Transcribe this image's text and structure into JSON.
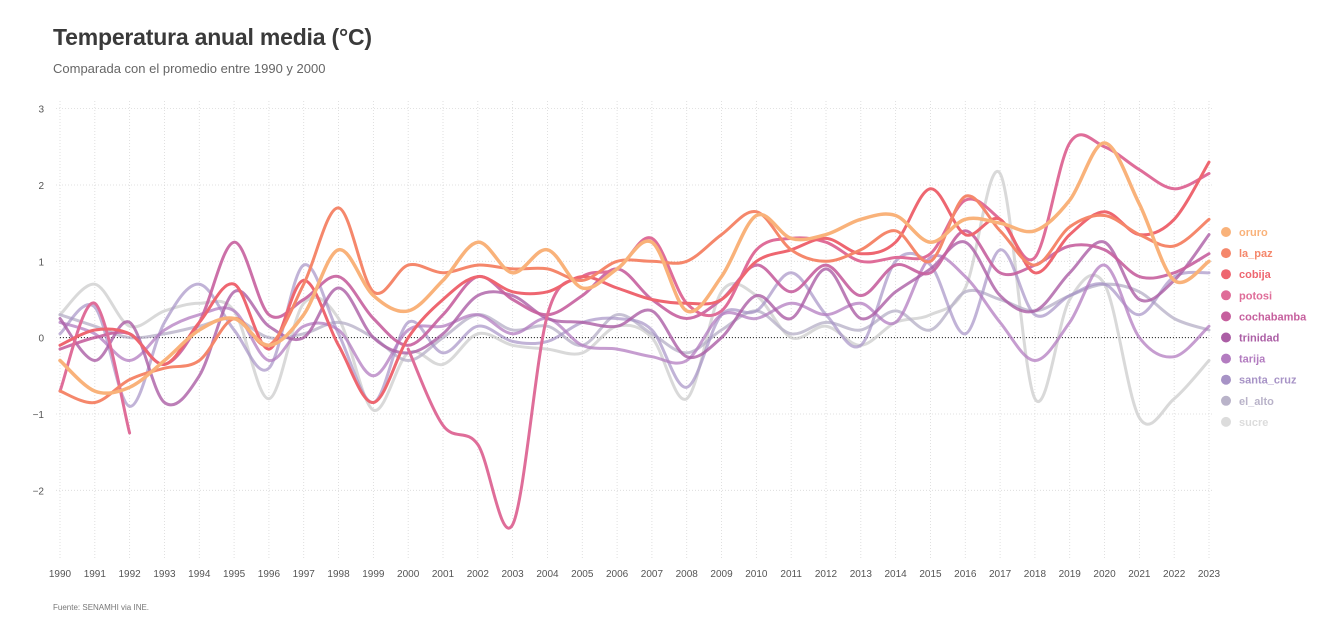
{
  "title": "Temperatura anual media (°C)",
  "subtitle": "Comparada con el promedio entre 1990 y 2000",
  "source": "Fuente: SENAMHI via INE.",
  "chart_data": {
    "type": "line",
    "title": "Temperatura anual media (°C)",
    "subtitle": "Comparada con el promedio entre 1990 y 2000",
    "ylim": [
      -2.9,
      3.1
    ],
    "xlim": [
      1990,
      2023
    ],
    "y_ticks": [
      -2,
      -1,
      0,
      1,
      2,
      3
    ],
    "y_tick_labels": [
      "−2",
      "−1",
      "0",
      "1",
      "2",
      "3"
    ],
    "grid": true,
    "reference_line": 0,
    "legend_position": "right",
    "x": [
      1990,
      1991,
      1992,
      1993,
      1994,
      1995,
      1996,
      1997,
      1998,
      1999,
      2000,
      2001,
      2002,
      2003,
      2004,
      2005,
      2006,
      2007,
      2008,
      2009,
      2010,
      2011,
      2012,
      2013,
      2014,
      2015,
      2016,
      2017,
      2018,
      2019,
      2020,
      2021,
      2022,
      2023
    ],
    "series": [
      {
        "name": "oruro",
        "color": "#f9b27a",
        "width": 3.5,
        "opacity": 1,
        "values": [
          -0.3,
          -0.7,
          -0.65,
          -0.3,
          0.1,
          0.25,
          -0.1,
          0.3,
          1.15,
          0.55,
          0.35,
          0.75,
          1.25,
          0.85,
          1.15,
          0.65,
          0.9,
          1.25,
          0.35,
          0.8,
          1.6,
          1.3,
          1.35,
          1.55,
          1.6,
          1.25,
          1.55,
          1.5,
          1.4,
          1.8,
          2.55,
          1.75,
          0.75,
          1.0
        ]
      },
      {
        "name": "la_paz",
        "color": "#f5876b",
        "width": 3,
        "opacity": 1,
        "values": [
          -0.7,
          -0.85,
          -0.55,
          -0.4,
          -0.3,
          0.25,
          -0.1,
          0.7,
          1.7,
          0.6,
          0.95,
          0.85,
          0.95,
          0.9,
          0.9,
          0.75,
          1.0,
          1.0,
          1.0,
          1.35,
          1.65,
          1.15,
          1.0,
          1.15,
          1.4,
          1.0,
          1.85,
          1.4,
          0.95,
          1.45,
          1.6,
          1.35,
          1.2,
          1.55
        ]
      },
      {
        "name": "cobija",
        "color": "#ee6670",
        "width": 3,
        "opacity": 1,
        "values": [
          -0.1,
          0.1,
          0.05,
          -0.35,
          0.2,
          0.7,
          -0.15,
          0.75,
          -0.1,
          -0.85,
          0.0,
          0.5,
          0.8,
          0.6,
          0.6,
          0.8,
          0.65,
          0.5,
          0.45,
          0.5,
          1.0,
          1.15,
          1.3,
          1.1,
          1.25,
          1.95,
          1.35,
          1.55,
          0.85,
          1.35,
          1.65,
          1.35,
          1.55,
          2.3
        ]
      },
      {
        "name": "potosi",
        "color": "#df6d99",
        "width": 3,
        "opacity": 1,
        "values": [
          -0.7,
          0.45,
          -1.25,
          null,
          null,
          null,
          null,
          null,
          null,
          null,
          -0.15,
          -1.15,
          -1.4,
          -2.45,
          0.3,
          0.8,
          0.9,
          1.3,
          0.45,
          0.35,
          1.15,
          1.3,
          1.25,
          1.0,
          1.05,
          1.1,
          1.8,
          1.55,
          1.05,
          2.55,
          2.5,
          2.2,
          1.95,
          2.15
        ]
      },
      {
        "name": "cochabamba",
        "color": "#c6609e",
        "width": 3,
        "opacity": 0.9,
        "values": [
          -0.15,
          0.0,
          0.05,
          -0.35,
          0.2,
          1.25,
          0.3,
          0.5,
          0.8,
          0.25,
          -0.1,
          0.3,
          0.8,
          0.5,
          0.3,
          0.55,
          0.9,
          0.5,
          0.25,
          0.5,
          0.95,
          0.6,
          0.95,
          0.55,
          0.95,
          0.85,
          1.4,
          0.85,
          0.95,
          1.2,
          1.15,
          0.8,
          0.85,
          1.1
        ]
      },
      {
        "name": "trinidad",
        "color": "#ab5ea5",
        "width": 3,
        "opacity": 0.8,
        "values": [
          0.25,
          -0.3,
          0.2,
          -0.85,
          -0.5,
          0.6,
          0.15,
          0.0,
          0.65,
          0.0,
          -0.2,
          0.05,
          0.55,
          0.55,
          0.25,
          0.2,
          0.15,
          0.35,
          -0.25,
          0.0,
          0.55,
          0.25,
          0.9,
          0.25,
          0.6,
          0.9,
          1.25,
          0.55,
          0.35,
          0.85,
          1.25,
          0.5,
          0.75,
          1.35
        ]
      },
      {
        "name": "tarija",
        "color": "#b37cc0",
        "width": 3,
        "opacity": 0.75,
        "values": [
          0.2,
          0.05,
          -0.3,
          0.1,
          0.3,
          0.35,
          -0.3,
          0.15,
          0.1,
          -0.5,
          0.1,
          0.15,
          0.3,
          0.05,
          0.25,
          -0.1,
          -0.15,
          -0.25,
          -0.3,
          0.3,
          0.25,
          0.45,
          0.3,
          0.45,
          0.2,
          1.05,
          0.8,
          0.2,
          -0.3,
          0.2,
          0.95,
          0.0,
          -0.25,
          0.15
        ]
      },
      {
        "name": "santa_cruz",
        "color": "#a793c6",
        "width": 3,
        "opacity": 0.7,
        "values": [
          0.05,
          0.4,
          -0.9,
          0.2,
          0.7,
          0.1,
          -0.4,
          0.95,
          0.05,
          -0.85,
          0.2,
          -0.2,
          0.15,
          -0.05,
          -0.05,
          0.2,
          0.25,
          0.1,
          -0.65,
          0.3,
          0.35,
          0.85,
          0.3,
          -0.1,
          1.0,
          0.95,
          0.05,
          1.15,
          0.3,
          0.55,
          0.7,
          0.3,
          0.8,
          0.85
        ]
      },
      {
        "name": "el_alto",
        "color": "#b9b3c9",
        "width": 3,
        "opacity": 0.8,
        "values": [
          0.3,
          0.15,
          0.0,
          0.05,
          0.15,
          0.25,
          0.0,
          0.05,
          0.2,
          0.0,
          -0.3,
          0.0,
          0.3,
          0.1,
          0.15,
          -0.1,
          0.3,
          0.05,
          -0.2,
          0.1,
          0.35,
          0.05,
          0.2,
          0.1,
          0.35,
          0.1,
          0.6,
          0.5,
          0.35,
          0.55,
          0.7,
          0.6,
          0.25,
          0.1
        ]
      },
      {
        "name": "sucre",
        "color": "#cfcfcf",
        "width": 3,
        "opacity": 0.8,
        "values": [
          0.3,
          0.7,
          0.15,
          0.35,
          0.45,
          0.35,
          -0.8,
          0.45,
          0.25,
          -0.95,
          -0.2,
          -0.35,
          0.05,
          -0.1,
          -0.15,
          -0.2,
          0.15,
          0.0,
          -0.8,
          0.6,
          0.55,
          0.0,
          0.15,
          -0.1,
          0.2,
          0.3,
          0.65,
          2.15,
          -0.8,
          0.5,
          0.7,
          -1.05,
          -0.8,
          -0.3
        ]
      }
    ],
    "legend_color_order": [
      "#f9b27a",
      "#f5876b",
      "#ee6670",
      "#df6d99",
      "#c6609e",
      "#ab5ea5",
      "#b37cc0",
      "#a793c6",
      "#b9b3c9",
      "#dcdcdc"
    ]
  }
}
